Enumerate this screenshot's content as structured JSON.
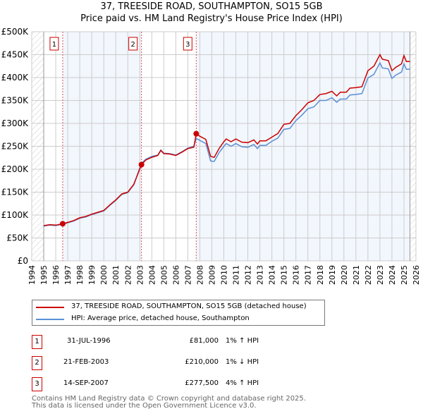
{
  "title": "37, TREESIDE ROAD, SOUTHAMPTON, SO15 5GB",
  "subtitle": "Price paid vs. HM Land Registry's House Price Index (HPI)",
  "chart_data": {
    "type": "line",
    "ylim": [
      0,
      500000
    ],
    "xlim": [
      1994,
      2026
    ],
    "yticks": [
      {
        "v": 0,
        "l": "£0"
      },
      {
        "v": 50000,
        "l": "£50K"
      },
      {
        "v": 100000,
        "l": "£100K"
      },
      {
        "v": 150000,
        "l": "£150K"
      },
      {
        "v": 200000,
        "l": "£200K"
      },
      {
        "v": 250000,
        "l": "£250K"
      },
      {
        "v": 300000,
        "l": "£300K"
      },
      {
        "v": 350000,
        "l": "£350K"
      },
      {
        "v": 400000,
        "l": "£400K"
      },
      {
        "v": 450000,
        "l": "£450K"
      },
      {
        "v": 500000,
        "l": "£500K"
      }
    ],
    "xticks": [
      "1994",
      "1995",
      "1996",
      "1997",
      "1998",
      "1999",
      "2000",
      "2001",
      "2002",
      "2003",
      "2004",
      "2005",
      "2006",
      "2007",
      "2008",
      "2009",
      "2010",
      "2011",
      "2012",
      "2013",
      "2014",
      "2015",
      "2016",
      "2017",
      "2018",
      "2019",
      "2020",
      "2021",
      "2022",
      "2023",
      "2024",
      "2025",
      "2026"
    ],
    "data_range": [
      1995,
      2025.5
    ],
    "series": [
      {
        "name": "37, TREESIDE ROAD, SOUTHAMPTON, SO15 5GB (detached house)",
        "color": "#cc0000",
        "x": [
          1995,
          1995.5,
          1996,
          1996.58,
          1997,
          1997.5,
          1998,
          1998.5,
          1999,
          1999.5,
          2000,
          2000.5,
          2001,
          2001.5,
          2002,
          2002.5,
          2003.14,
          2003.5,
          2004,
          2004.5,
          2004.75,
          2005,
          2005.5,
          2006,
          2006.5,
          2007,
          2007.5,
          2007.7,
          2008,
          2008.5,
          2008.9,
          2009.2,
          2009.6,
          2010,
          2010.2,
          2010.6,
          2011,
          2011.5,
          2012,
          2012.5,
          2012.8,
          2013,
          2013.5,
          2014,
          2014.5,
          2015,
          2015.5,
          2016,
          2016.5,
          2017,
          2017.5,
          2018,
          2018.5,
          2019,
          2019.4,
          2019.7,
          2020.2,
          2020.5,
          2021,
          2021.5,
          2022,
          2022.5,
          2023,
          2023.2,
          2023.7,
          2024,
          2024.3,
          2024.8,
          2025,
          2025.2,
          2025.5
        ],
        "y": [
          77000,
          79000,
          78000,
          81000,
          84000,
          88000,
          94000,
          97000,
          102000,
          106000,
          110000,
          122000,
          133000,
          146000,
          150000,
          167000,
          210000,
          220000,
          226000,
          230000,
          241000,
          234000,
          233000,
          230000,
          237000,
          245000,
          248000,
          277500,
          272000,
          265000,
          228000,
          226000,
          245000,
          260000,
          266000,
          260000,
          266000,
          259000,
          258000,
          264000,
          255000,
          262000,
          262000,
          270000,
          278000,
          298000,
          300000,
          317000,
          330000,
          345000,
          350000,
          363000,
          365000,
          370000,
          360000,
          368000,
          368000,
          377000,
          378000,
          380000,
          415000,
          425000,
          450000,
          440000,
          437000,
          415000,
          422000,
          430000,
          448000,
          435000,
          435000
        ]
      },
      {
        "name": "HPI: Average price, detached house, Southampton",
        "color": "#5b8fd4",
        "x": [
          1995,
          1995.5,
          1996,
          1996.58,
          1997,
          1997.5,
          1998,
          1998.5,
          1999,
          1999.5,
          2000,
          2000.5,
          2001,
          2001.5,
          2002,
          2002.5,
          2003.14,
          2003.5,
          2004,
          2004.5,
          2004.75,
          2005,
          2005.5,
          2006,
          2006.5,
          2007,
          2007.5,
          2007.7,
          2008,
          2008.5,
          2008.9,
          2009.2,
          2009.6,
          2010,
          2010.2,
          2010.6,
          2011,
          2011.5,
          2012,
          2012.5,
          2012.8,
          2013,
          2013.5,
          2014,
          2014.5,
          2015,
          2015.5,
          2016,
          2016.5,
          2017,
          2017.5,
          2018,
          2018.5,
          2019,
          2019.4,
          2019.7,
          2020.2,
          2020.5,
          2021,
          2021.5,
          2022,
          2022.5,
          2023,
          2023.2,
          2023.7,
          2024,
          2024.3,
          2024.8,
          2025,
          2025.2,
          2025.5
        ],
        "y": [
          76000,
          78000,
          77000,
          80000,
          83000,
          87000,
          93000,
          96000,
          101000,
          105000,
          109000,
          121000,
          132000,
          145000,
          149000,
          166000,
          213000,
          222000,
          228000,
          231000,
          242000,
          235000,
          234000,
          231000,
          238000,
          246000,
          250000,
          267000,
          263000,
          256000,
          218000,
          217000,
          236000,
          250000,
          256000,
          250000,
          256000,
          249000,
          248000,
          254000,
          245000,
          252000,
          252000,
          261000,
          268000,
          287000,
          289000,
          306000,
          318000,
          332000,
          336000,
          350000,
          350000,
          356000,
          346000,
          353000,
          353000,
          362000,
          363000,
          365000,
          399000,
          407000,
          432000,
          421000,
          419000,
          398000,
          405000,
          412000,
          430000,
          418000,
          418000
        ]
      }
    ],
    "sales": [
      {
        "n": "1",
        "x": 1996.58,
        "date": "31-JUL-1996",
        "price": "£81,000",
        "hpi": "1% ↑ HPI",
        "value": 81000
      },
      {
        "n": "2",
        "x": 2003.14,
        "date": "21-FEB-2003",
        "price": "£210,000",
        "hpi": "1% ↓ HPI",
        "value": 210000
      },
      {
        "n": "3",
        "x": 2007.7,
        "date": "14-SEP-2007",
        "price": "£277,500",
        "hpi": "4% ↑ HPI",
        "value": 277500
      }
    ]
  },
  "footer": [
    "Contains HM Land Registry data © Crown copyright and database right 2025.",
    "This data is licensed under the Open Government Licence v3.0."
  ]
}
